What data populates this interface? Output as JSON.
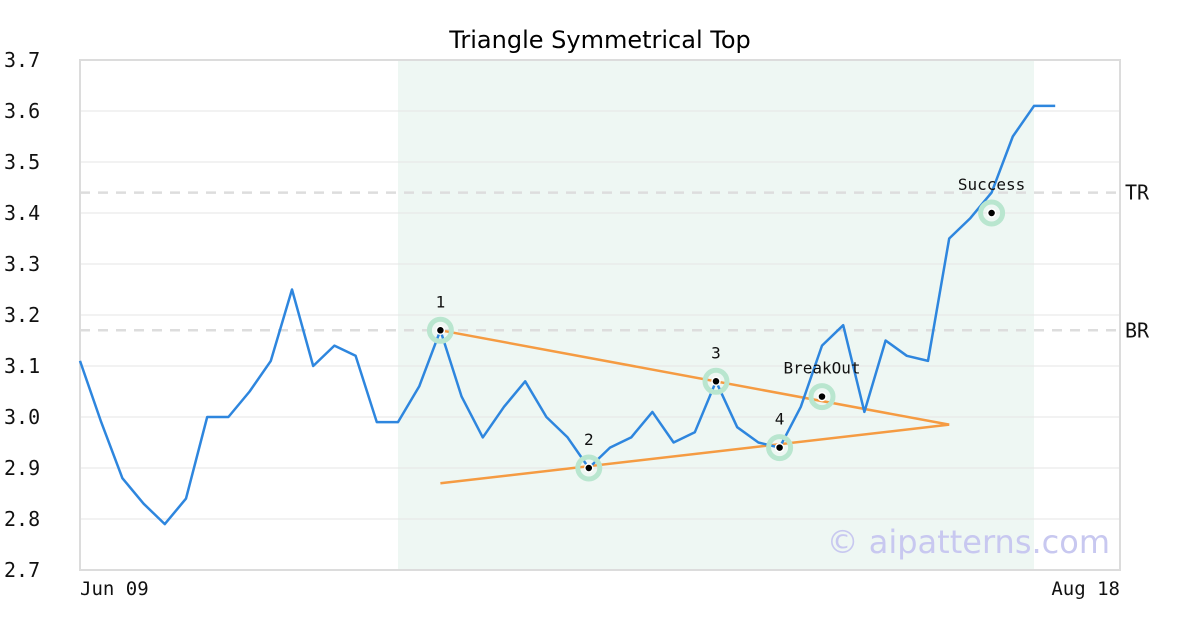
{
  "chart_data": {
    "type": "line",
    "title": "Triangle Symmetrical Top",
    "ylim": [
      2.7,
      3.7
    ],
    "yticks": [
      2.7,
      2.8,
      2.9,
      3.0,
      3.1,
      3.2,
      3.3,
      3.4,
      3.5,
      3.6,
      3.7
    ],
    "x_labels": [
      {
        "label": "Jun 09",
        "index": 0
      },
      {
        "label": "Aug 18",
        "index": 47
      }
    ],
    "series": [
      {
        "values": [
          3.11,
          2.99,
          2.88,
          2.83,
          2.79,
          2.84,
          3.0,
          3.0,
          3.05,
          3.11,
          3.25,
          3.1,
          3.14,
          3.12,
          2.99,
          2.99,
          3.06,
          3.17,
          3.04,
          2.96,
          3.02,
          3.07,
          3.0,
          2.96,
          2.9,
          2.94,
          2.96,
          3.01,
          2.95,
          2.97,
          3.07,
          2.98,
          2.95,
          2.94,
          3.02,
          3.14,
          3.18,
          3.01,
          3.15,
          3.12,
          3.11,
          3.35,
          3.39,
          3.44,
          3.55,
          3.61,
          3.61
        ],
        "color": "#2e86de"
      }
    ],
    "pattern_range": {
      "start_index": 15,
      "end_index": 45
    },
    "levels": [
      {
        "label": "TR",
        "value": 3.44
      },
      {
        "label": "BR",
        "value": 3.17
      }
    ],
    "trendlines": [
      {
        "from": [
          17,
          3.17
        ],
        "to": [
          41,
          2.985
        ],
        "color": "#f59b42"
      },
      {
        "from": [
          17,
          2.87
        ],
        "to": [
          41,
          2.985
        ],
        "color": "#f59b42"
      }
    ],
    "points": [
      {
        "label": "1",
        "index": 17,
        "value": 3.17,
        "label_pos": "above"
      },
      {
        "label": "2",
        "index": 24,
        "value": 2.9,
        "label_pos": "above"
      },
      {
        "label": "3",
        "index": 30,
        "value": 3.07,
        "label_pos": "above"
      },
      {
        "label": "4",
        "index": 33,
        "value": 2.94,
        "label_pos": "above"
      },
      {
        "label": "BreakOut",
        "index": 35,
        "value": 3.04,
        "label_pos": "above"
      },
      {
        "label": "Success",
        "index": 43,
        "value": 3.4,
        "label_pos": "above"
      }
    ],
    "grid": true,
    "watermark": "© aipatterns.com"
  }
}
